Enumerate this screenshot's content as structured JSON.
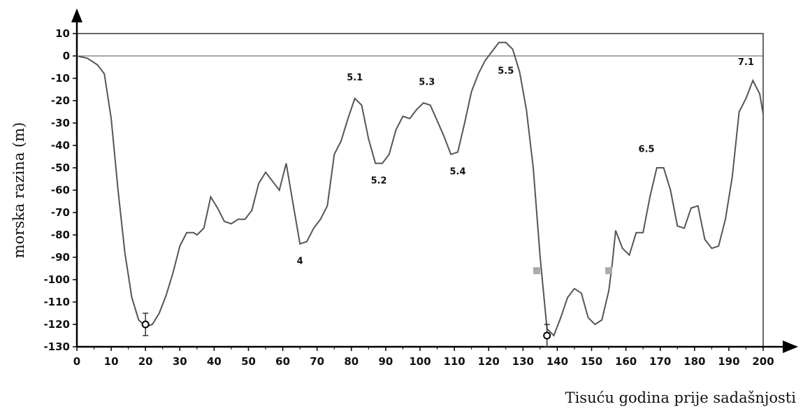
{
  "chart_data": {
    "type": "line",
    "title": "",
    "xlabel": "Tisuću godina prije sadašnjosti",
    "ylabel": "morska razina (m)",
    "xlim": [
      0,
      200
    ],
    "ylim": [
      -130,
      10
    ],
    "xticks": [
      0,
      10,
      20,
      30,
      40,
      50,
      60,
      70,
      80,
      90,
      100,
      110,
      120,
      130,
      140,
      150,
      160,
      170,
      180,
      190,
      200
    ],
    "yticks": [
      10,
      0,
      -10,
      -20,
      -30,
      -40,
      -50,
      -60,
      -70,
      -80,
      -90,
      -100,
      -110,
      -120,
      -130
    ],
    "reference_line_y": 0,
    "grid": false,
    "series": [
      {
        "x": [
          0,
          3,
          6,
          8,
          10,
          12,
          14,
          16,
          18,
          20,
          22,
          24,
          26,
          28,
          30,
          32,
          34,
          35,
          37,
          39,
          41,
          43,
          45,
          47,
          49,
          51,
          53,
          55,
          57,
          59,
          61,
          63,
          65,
          67,
          69,
          71,
          73,
          75,
          77,
          79,
          81,
          83,
          85,
          87,
          89,
          91,
          93,
          95,
          97,
          99,
          101,
          103,
          105,
          107,
          109,
          111,
          113,
          115,
          117,
          119,
          121,
          123,
          125,
          127,
          129,
          131,
          133,
          135,
          137,
          139,
          141,
          143,
          145,
          147,
          149,
          151,
          153,
          155,
          156,
          157,
          159,
          161,
          163,
          165,
          167,
          169,
          171,
          173,
          175,
          177,
          179,
          181,
          183,
          185,
          187,
          189,
          191,
          193,
          195,
          197,
          199,
          200
        ],
        "y": [
          0,
          -1,
          -4,
          -8,
          -28,
          -60,
          -88,
          -108,
          -118,
          -121,
          -120,
          -115,
          -107,
          -97,
          -85,
          -79,
          -79,
          -80,
          -77,
          -63,
          -68,
          -74,
          -75,
          -73,
          -73,
          -69,
          -57,
          -52,
          -56,
          -60,
          -48,
          -66,
          -84,
          -83,
          -77,
          -73,
          -67,
          -44,
          -38,
          -28,
          -19,
          -22,
          -37,
          -48,
          -48,
          -44,
          -33,
          -27,
          -28,
          -24,
          -21,
          -22,
          -29,
          -36,
          -44,
          -43,
          -30,
          -16,
          -8,
          -2,
          2,
          6,
          6,
          3,
          -7,
          -24,
          -50,
          -90,
          -122,
          -125,
          -117,
          -108,
          -104,
          -106,
          -117,
          -120,
          -118,
          -105,
          -93,
          -78,
          -86,
          -89,
          -79,
          -79,
          -63,
          -50,
          -50,
          -60,
          -76,
          -77,
          -68,
          -67,
          -82,
          -86,
          -85,
          -73,
          -54,
          -25,
          -19,
          -11,
          -17,
          -26
        ]
      }
    ],
    "annotations": [
      {
        "text": "4",
        "x": 65,
        "y": -93
      },
      {
        "text": "5.1",
        "x": 81,
        "y": -11
      },
      {
        "text": "5.2",
        "x": 88,
        "y": -57
      },
      {
        "text": "5.3",
        "x": 102,
        "y": -13
      },
      {
        "text": "5.4",
        "x": 111,
        "y": -53
      },
      {
        "text": "5.5",
        "x": 125,
        "y": -8
      },
      {
        "text": "6.5",
        "x": 166,
        "y": -43
      },
      {
        "text": "7.1",
        "x": 195,
        "y": -4
      }
    ],
    "marker_points": [
      {
        "x": 20,
        "y": -120,
        "err_low": -125,
        "err_high": -115
      },
      {
        "x": 137,
        "y": -125,
        "err_low": -130,
        "err_high": -120
      }
    ],
    "square_markers": [
      {
        "x": 134,
        "y": -96
      },
      {
        "x": 155,
        "y": -96
      }
    ]
  }
}
